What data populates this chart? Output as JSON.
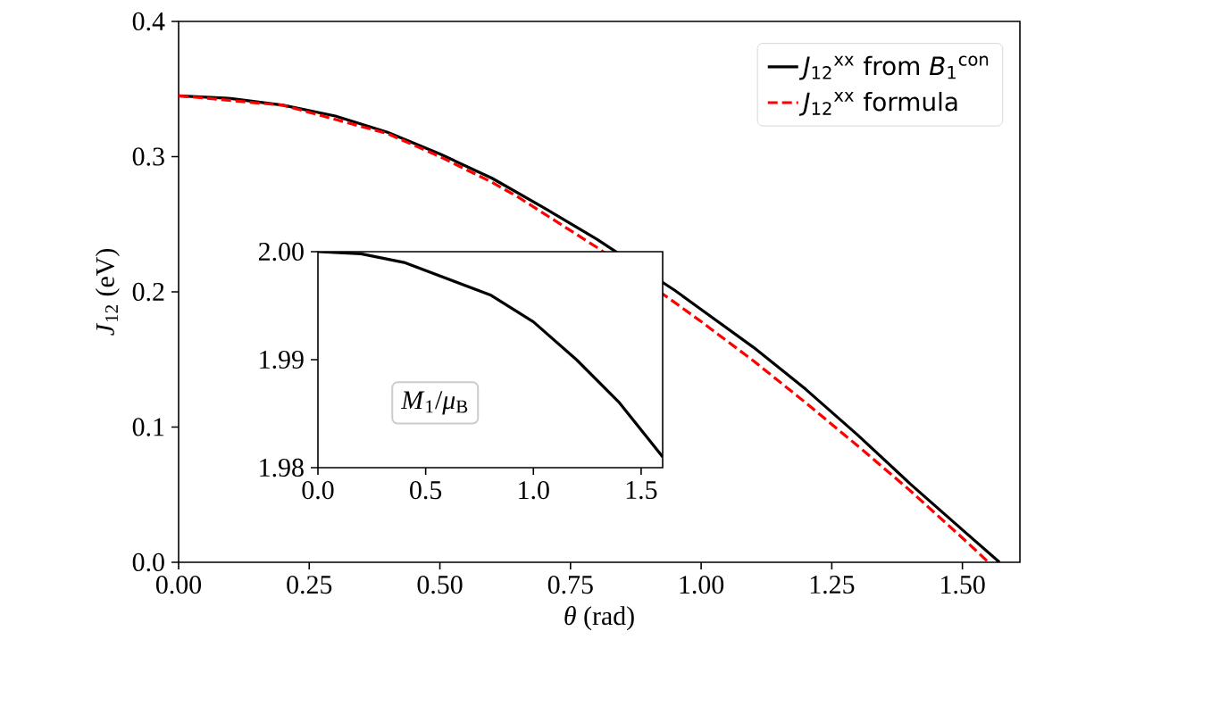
{
  "chart_data": [
    {
      "type": "line",
      "xlabel": "*θ* (rad)",
      "ylabel": "*J*$_{12}$ (eV)",
      "xlim": [
        0,
        1.61
      ],
      "ylim": [
        0,
        0.4
      ],
      "xticks": [
        {
          "value": 0,
          "label": "0.00"
        },
        {
          "value": 0.25,
          "label": "0.25"
        },
        {
          "value": 0.5,
          "label": "0.50"
        },
        {
          "value": 0.75,
          "label": "0.75"
        },
        {
          "value": 1.0,
          "label": "1.00"
        },
        {
          "value": 1.25,
          "label": "1.25"
        },
        {
          "value": 1.5,
          "label": "1.50"
        }
      ],
      "yticks": [
        {
          "value": 0,
          "label": "0.0"
        },
        {
          "value": 0.1,
          "label": "0.1"
        },
        {
          "value": 0.2,
          "label": "0.2"
        },
        {
          "value": 0.3,
          "label": "0.3"
        },
        {
          "value": 0.4,
          "label": "0.4"
        }
      ],
      "legend": "top right",
      "series": [
        {
          "name": "*J*$_{12}$$^{xx}$ from *B*$_{1}$$^{con}$",
          "color": "#000000",
          "line_style": "solid",
          "x": [
            0,
            0.1,
            0.2,
            0.3,
            0.4,
            0.5,
            0.6,
            0.7,
            0.8,
            0.95,
            1.0,
            1.1,
            1.2,
            1.3,
            1.4,
            1.5,
            1.571
          ],
          "values": [
            0.345,
            0.343,
            0.338,
            0.33,
            0.318,
            0.302,
            0.284,
            0.262,
            0.239,
            0.201,
            0.187,
            0.159,
            0.128,
            0.094,
            0.058,
            0.024,
            0.0
          ]
        },
        {
          "name": "*J*$_{12}$$^{xx}$ formula",
          "color": "#ff0000",
          "line_style": "dashed",
          "x": [
            0,
            0.2,
            0.4,
            0.5,
            0.6,
            0.65,
            0.8,
            0.95,
            1.0,
            1.1,
            1.2,
            1.3,
            1.4,
            1.5,
            1.55
          ],
          "values": [
            0.345,
            0.338,
            0.317,
            0.3,
            0.281,
            0.27,
            0.233,
            0.192,
            0.178,
            0.149,
            0.118,
            0.086,
            0.053,
            0.018,
            0.0
          ]
        }
      ]
    },
    {
      "type": "line",
      "annotations": [
        "*M*$_{1}$/*μ*$_{B}$"
      ],
      "xlim": [
        0,
        1.6
      ],
      "ylim": [
        1.98,
        2.0
      ],
      "xticks": [
        {
          "value": 0,
          "label": "0.0"
        },
        {
          "value": 0.5,
          "label": "0.5"
        },
        {
          "value": 1.0,
          "label": "1.0"
        },
        {
          "value": 1.5,
          "label": "1.5"
        }
      ],
      "yticks": [
        {
          "value": 1.98,
          "label": "1.98"
        },
        {
          "value": 1.99,
          "label": "1.99"
        },
        {
          "value": 2.0,
          "label": "2.00"
        }
      ],
      "series": [
        {
          "color": "#000000",
          "line_style": "solid",
          "x": [
            0,
            0.2,
            0.4,
            0.6,
            0.8,
            1.0,
            1.2,
            1.4,
            1.6
          ],
          "values": [
            2.0,
            1.9998,
            1.999,
            1.9975,
            1.996,
            1.9935,
            1.99,
            1.986,
            1.981
          ]
        }
      ]
    }
  ]
}
